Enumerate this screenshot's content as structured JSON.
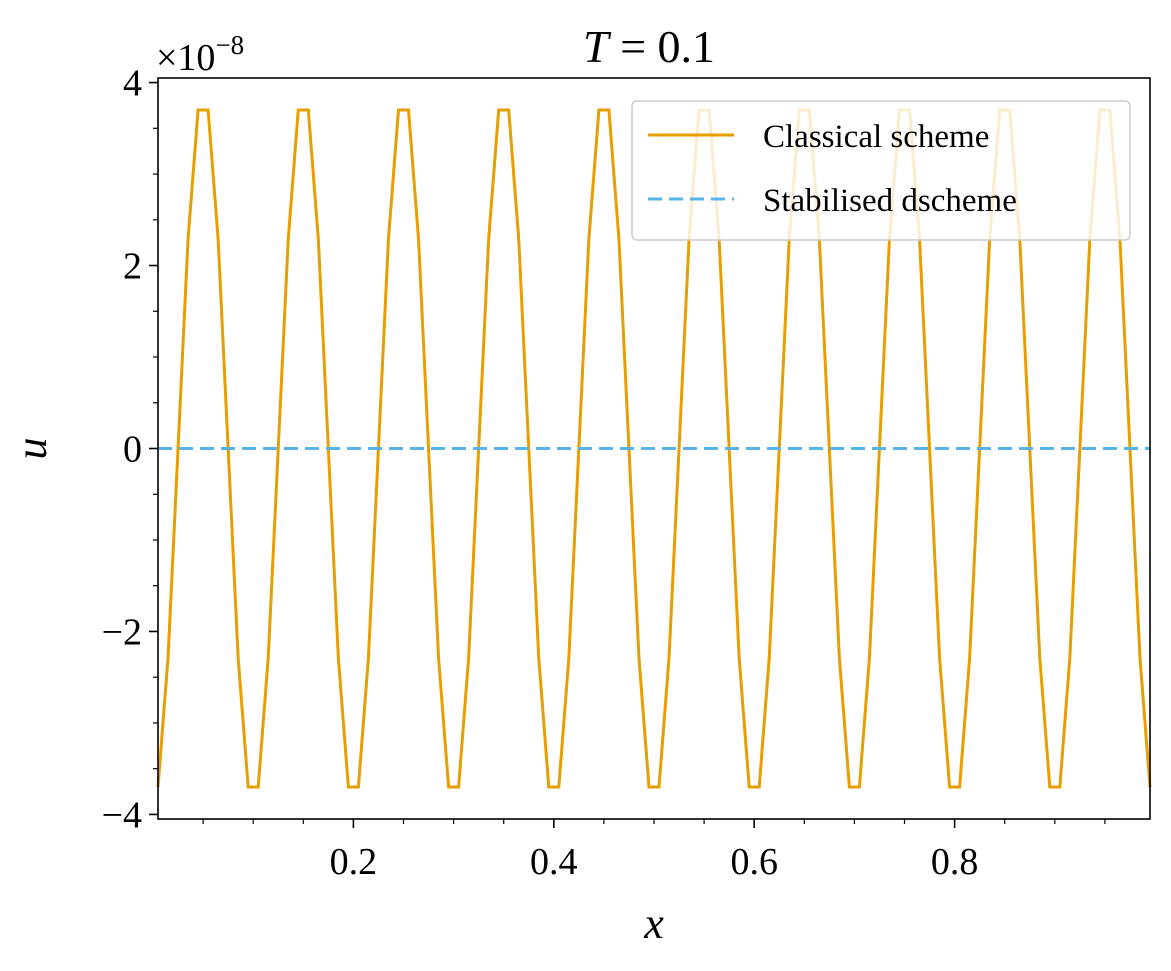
{
  "chart_data": {
    "type": "line",
    "title_var": "T",
    "title_value": " = 0.1",
    "xlabel": "x",
    "ylabel": "u",
    "offset_base": "×10",
    "offset_exponent": "−8",
    "xlim": [
      0.005,
      0.995
    ],
    "ylim": [
      -4.05,
      4.05
    ],
    "x_ticks": [
      0.2,
      0.4,
      0.6,
      0.8
    ],
    "x_tick_labels": [
      "0.2",
      "0.4",
      "0.6",
      "0.8"
    ],
    "y_ticks": [
      -4,
      -2,
      0,
      2,
      4
    ],
    "y_tick_labels": [
      "−4",
      "−2",
      "0",
      "2",
      "4"
    ],
    "legend_position": "upper right",
    "series": [
      {
        "name": "Classical scheme",
        "style": "solid",
        "color": "#E69F00",
        "x_start": 0.005,
        "x_step": 0.01,
        "pattern_period": 10,
        "pattern_values": [
          -3.7,
          -2.29,
          0.0,
          2.29,
          3.7,
          3.7,
          2.29,
          0.0,
          -2.29,
          -3.7
        ],
        "n_points": 100
      },
      {
        "name": "Stabilised dscheme",
        "style": "dashed",
        "color": "#56B4E9",
        "x": [
          0.005,
          0.995
        ],
        "y": [
          0.0,
          0.0
        ]
      }
    ]
  }
}
